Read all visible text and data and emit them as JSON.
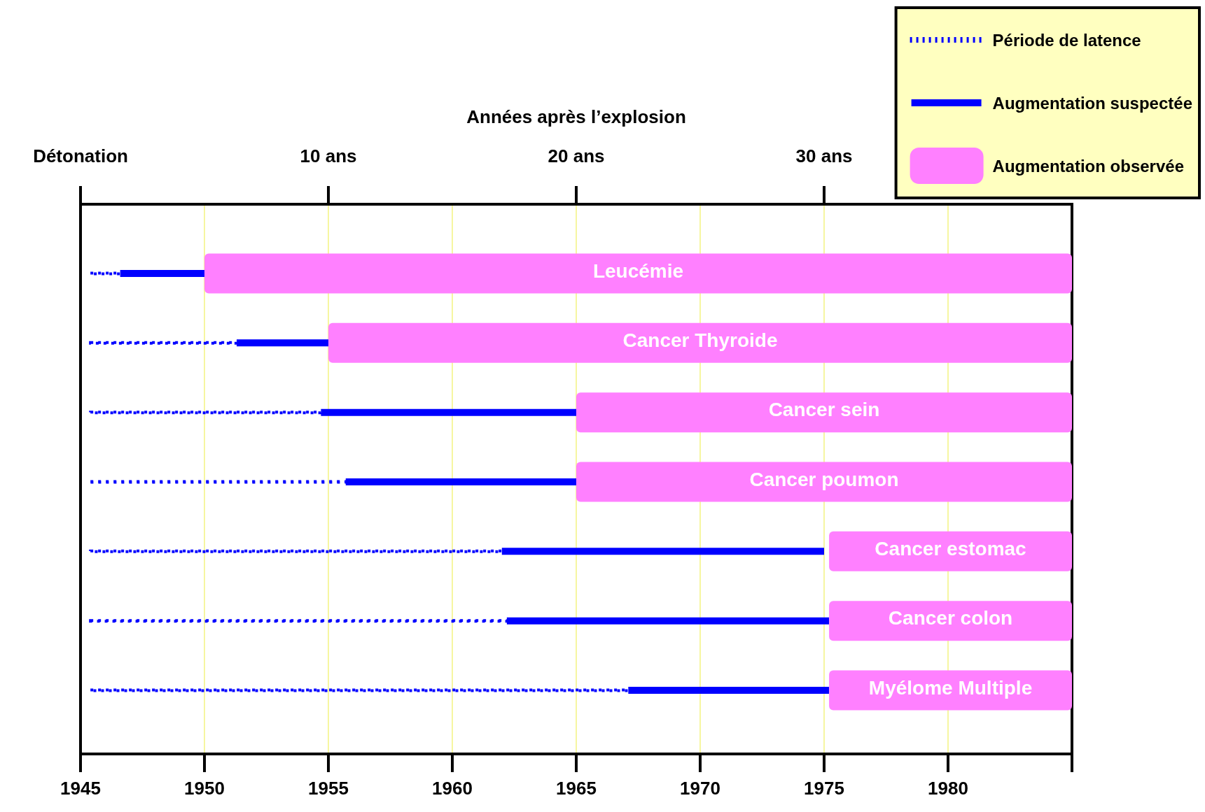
{
  "chart_data": {
    "type": "bar",
    "orientation": "horizontal",
    "categories": [
      "Leucémie",
      "Cancer Thyroide",
      "Cancer sein",
      "Cancer poumon",
      "Cancer estomac",
      "Cancer colon",
      "Myélome Multiple"
    ],
    "series": [
      {
        "name": "Période de latence",
        "color": "#0000ff",
        "line_style": "dotted",
        "base": [
          1945.4,
          1945.4,
          1945.4,
          1945.4,
          1945.4,
          1945.4,
          1945.4
        ],
        "values": [
          1.2,
          5.9,
          9.3,
          10.3,
          16.6,
          16.8,
          21.7
        ]
      },
      {
        "name": "Augmentation suspectée",
        "color": "#0000ff",
        "line_style": "solid",
        "base": [
          1946.6,
          1951.3,
          1954.7,
          1955.7,
          1962,
          1962.2,
          1967.1
        ],
        "values": [
          3.4,
          3.7,
          10.3,
          9.3,
          13,
          13,
          8.1
        ]
      },
      {
        "name": "Augmentation observée",
        "color": "#ff80ff",
        "base": [
          1950,
          1955,
          1965,
          1965,
          1975.2,
          1975.2,
          1975.2
        ],
        "values": [
          35,
          30,
          20,
          20,
          9.8,
          9.8,
          9.8
        ]
      }
    ],
    "xlim": [
      1945,
      1985
    ],
    "xticks": [
      1945,
      1950,
      1955,
      1960,
      1965,
      1970,
      1975,
      1980,
      {
        "value": 1985,
        "label": null
      }
    ],
    "x2label": "Années après l’explosion",
    "x2lim": [
      0,
      40
    ],
    "x2ticks": [
      {
        "value": 0,
        "label": "Détonation"
      },
      {
        "value": 10,
        "label": "10 ans"
      },
      {
        "value": 20,
        "label": "20 ans"
      },
      {
        "value": 30,
        "label": "30 ans"
      }
    ],
    "grid": "x",
    "legend": "top right"
  }
}
